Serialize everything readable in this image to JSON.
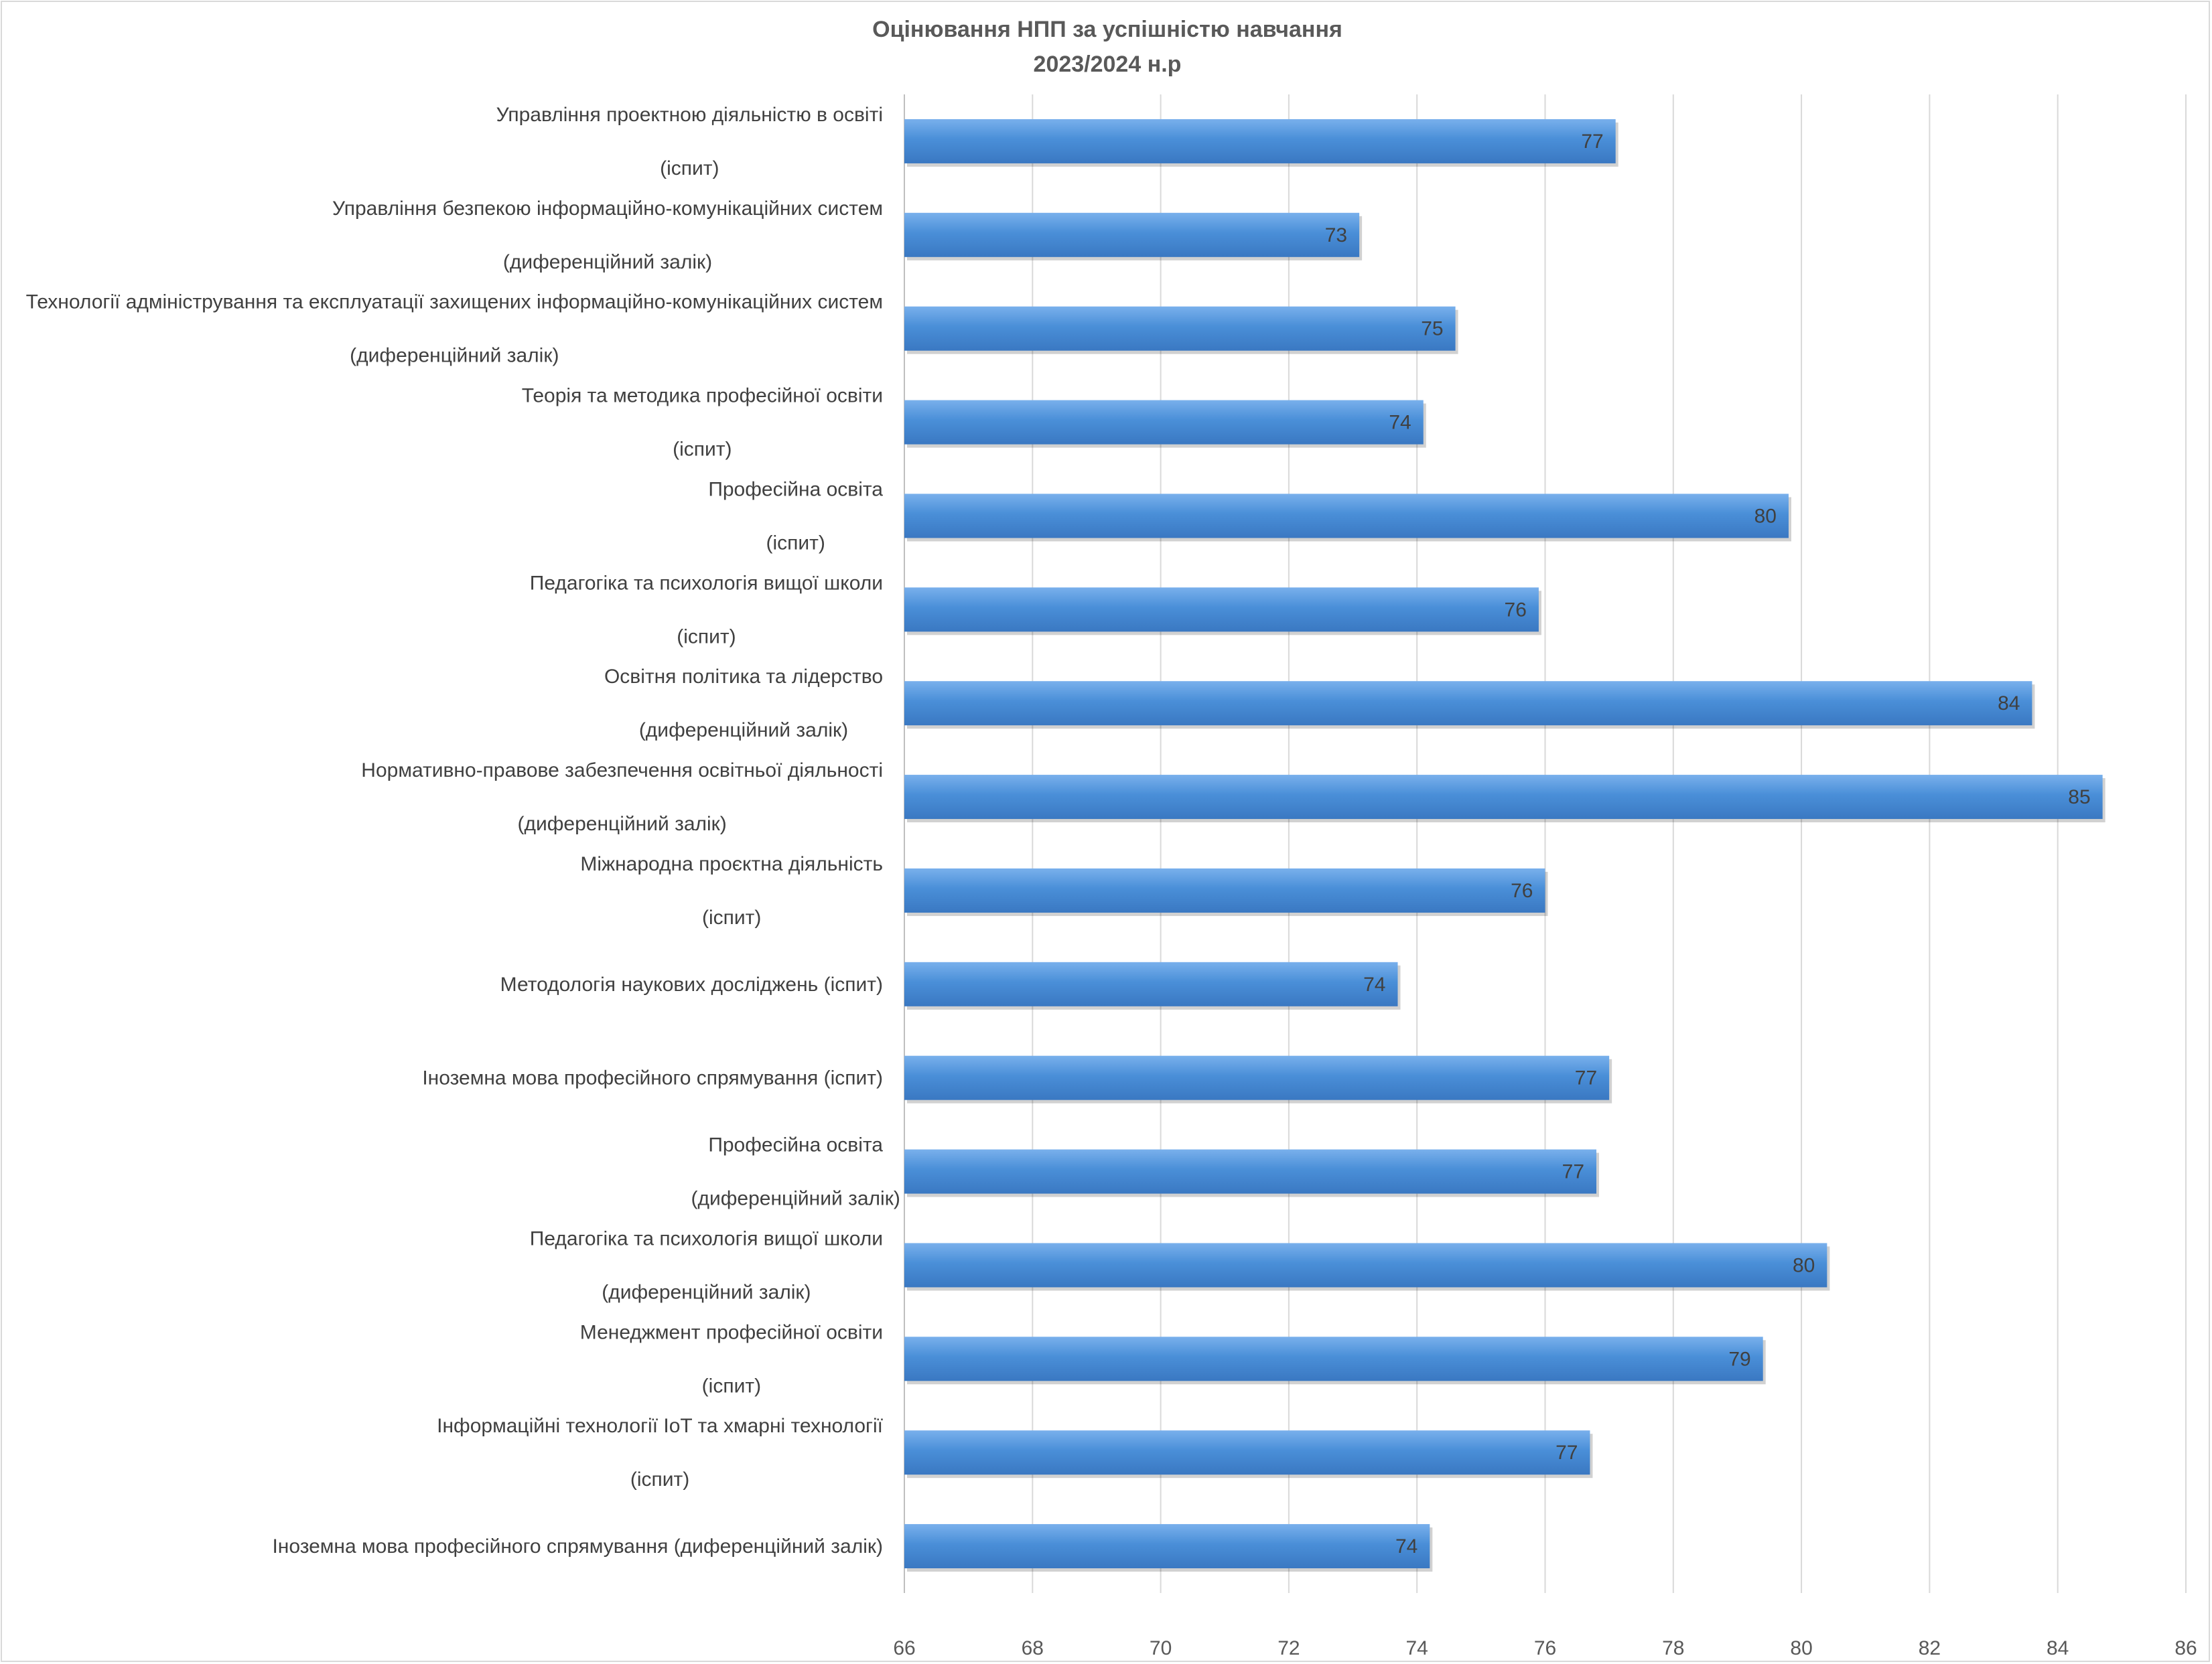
{
  "chart_data": {
    "type": "bar",
    "orientation": "horizontal",
    "title": [
      "Оцінювання НПП за успішністю навчання",
      "2023/2024 н.р"
    ],
    "categories": [
      [
        "Управління проектною діяльністю в освіті",
        "(іспит)"
      ],
      [
        "Управління безпекою інформаційно-комунікаційних систем",
        "(диференційний залік)"
      ],
      [
        "Технології адміністрування та експлуатації захищених інформаційно-комунікаційних систем",
        "(диференційний залік)"
      ],
      [
        "Теорія та методика професійної освіти",
        "(іспит)"
      ],
      [
        "Професійна освіта",
        "(іспит)"
      ],
      [
        "Педагогіка та психологія вищої школи",
        "(іспит)"
      ],
      [
        "Освітня політика та лідерство",
        "(диференційний залік)"
      ],
      [
        "Нормативно-правове забезпечення освітньої діяльності",
        "(диференційний залік)"
      ],
      [
        "Міжнародна проєктна діяльність",
        "(іспит)"
      ],
      [
        "Методологія наукових досліджень (іспит)"
      ],
      [
        "Іноземна мова професійного спрямування (іспит)"
      ],
      [
        "Професійна освіта",
        "(диференційний залік)"
      ],
      [
        "Педагогіка та психологія вищої школи",
        "(диференційний залік)"
      ],
      [
        "Менеджмент професійної освіти",
        "(іспит)"
      ],
      [
        "Інформаційні технології IoT та хмарні технології",
        "(іспит)"
      ],
      [
        "Іноземна мова професійного спрямування (диференційний залік)"
      ]
    ],
    "values": [
      77.1,
      73.1,
      74.6,
      74.1,
      79.8,
      75.9,
      83.6,
      84.7,
      76.0,
      73.7,
      77.0,
      76.8,
      80.4,
      79.4,
      76.7,
      74.2
    ],
    "value_labels": [
      "77",
      "73",
      "75",
      "74",
      "80",
      "76",
      "84",
      "85",
      "76",
      "74",
      "77",
      "77",
      "80",
      "79",
      "77",
      "74"
    ],
    "xlim": [
      66,
      86
    ],
    "xticks": [
      "66",
      "68",
      "70",
      "72",
      "74",
      "76",
      "78",
      "80",
      "82",
      "84",
      "86"
    ],
    "grid": "vertical",
    "legend": "none",
    "bar_color": "#4a8fd8",
    "bar_color_light": "#79b0ec",
    "bar_color_dark": "#3a78c2"
  }
}
